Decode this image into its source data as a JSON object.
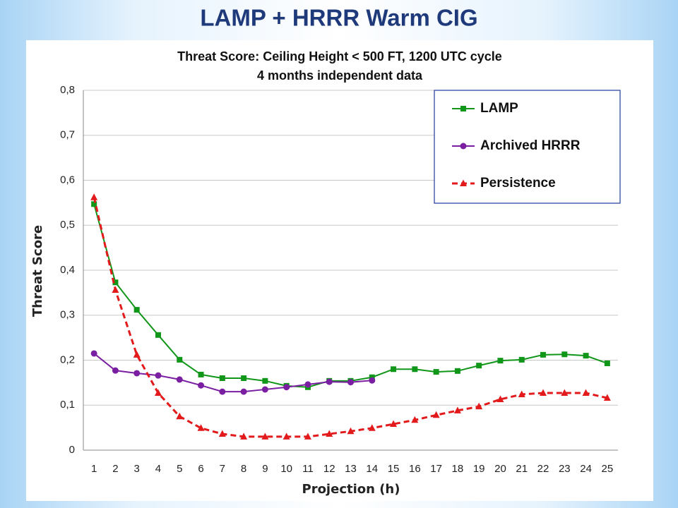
{
  "slide_title": "LAMP + HRRR Warm CIG",
  "chart_data": {
    "type": "line",
    "title": "Threat Score: Ceiling Height < 500 FT, 1200 UTC cycle",
    "subtitle": "4 months independent data",
    "x_label": "Projection (h)",
    "y_label": "Threat Score",
    "categories": [
      "1",
      "2",
      "3",
      "4",
      "5",
      "6",
      "7",
      "8",
      "9",
      "10",
      "11",
      "12",
      "13",
      "14",
      "15",
      "16",
      "17",
      "18",
      "19",
      "20",
      "21",
      "22",
      "23",
      "24",
      "25"
    ],
    "series": [
      {
        "name": "LAMP",
        "color": "#109618",
        "marker": "square",
        "dash": false,
        "values": [
          0.547,
          0.373,
          0.312,
          0.256,
          0.201,
          0.168,
          0.16,
          0.16,
          0.154,
          0.143,
          0.14,
          0.154,
          0.154,
          0.162,
          0.18,
          0.18,
          0.174,
          0.176,
          0.188,
          0.199,
          0.201,
          0.212,
          0.213,
          0.21,
          0.193
        ]
      },
      {
        "name": "Archived HRRR",
        "color": "#7b1fa2",
        "marker": "circle",
        "dash": false,
        "values": [
          0.215,
          0.177,
          0.171,
          0.166,
          0.157,
          0.144,
          0.13,
          0.13,
          0.135,
          0.14,
          0.146,
          0.152,
          0.151,
          0.155,
          null,
          null,
          null,
          null,
          null,
          null,
          null,
          null,
          null,
          null,
          null
        ]
      },
      {
        "name": "Persistence",
        "color": "#e31a1c",
        "marker": "triangle",
        "dash": true,
        "values": [
          0.562,
          0.356,
          0.212,
          0.127,
          0.075,
          0.049,
          0.036,
          0.03,
          0.03,
          0.03,
          0.03,
          0.036,
          0.042,
          0.049,
          0.058,
          0.067,
          0.078,
          0.088,
          0.097,
          0.113,
          0.124,
          0.127,
          0.127,
          0.127,
          0.116
        ]
      }
    ],
    "ylim": [
      0,
      0.8
    ],
    "yticks": [
      0,
      {
        "value": 0.1,
        "label": "0,1"
      },
      {
        "value": 0.2,
        "label": "0,2"
      },
      {
        "value": 0.3,
        "label": "0,3"
      },
      {
        "value": 0.4,
        "label": "0,4"
      },
      {
        "value": 0.5,
        "label": "0,5"
      },
      {
        "value": 0.6,
        "label": "0,6"
      },
      {
        "value": 0.7,
        "label": "0,7"
      },
      {
        "value": 0.8,
        "label": "0,8"
      }
    ],
    "grid": true,
    "legend": "top-right"
  }
}
